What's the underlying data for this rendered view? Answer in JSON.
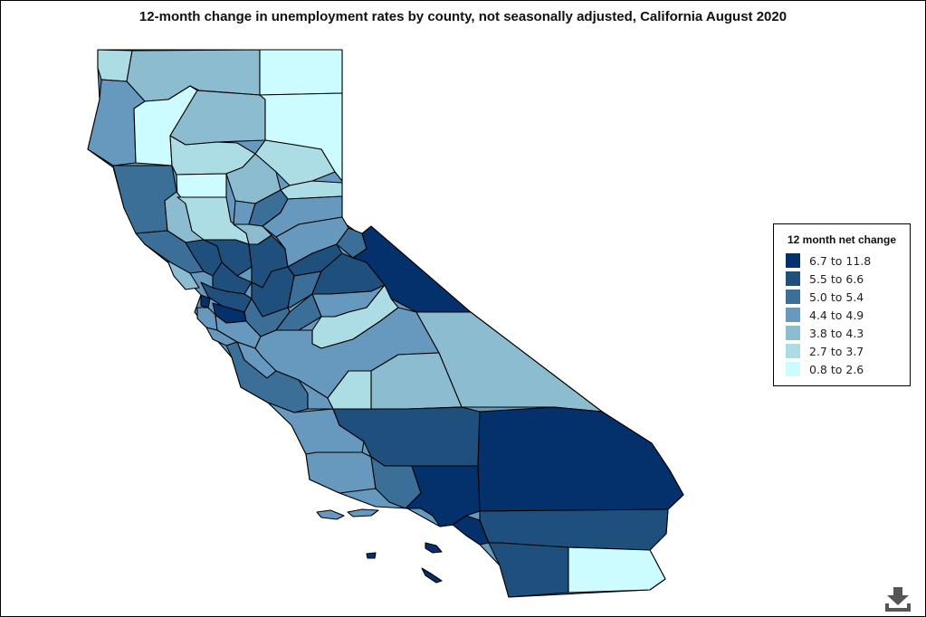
{
  "title": "12-month change in unemployment rates by county, not seasonally adjusted, California August 2020",
  "legend": {
    "title": "12 month net change",
    "items": [
      {
        "label": "6.7 to 11.8",
        "color": "#04306b"
      },
      {
        "label": "5.5 to 6.6",
        "color": "#1f4f7d"
      },
      {
        "label": "5.0 to 5.4",
        "color": "#3b6f98"
      },
      {
        "label": "4.4 to 4.9",
        "color": "#6699bd"
      },
      {
        "label": "3.8 to 4.3",
        "color": "#8bbccf"
      },
      {
        "label": "2.7 to 3.7",
        "color": "#acdde5"
      },
      {
        "label": "0.8 to 2.6",
        "color": "#ccfcff"
      }
    ]
  },
  "download_icon": "download-icon"
}
